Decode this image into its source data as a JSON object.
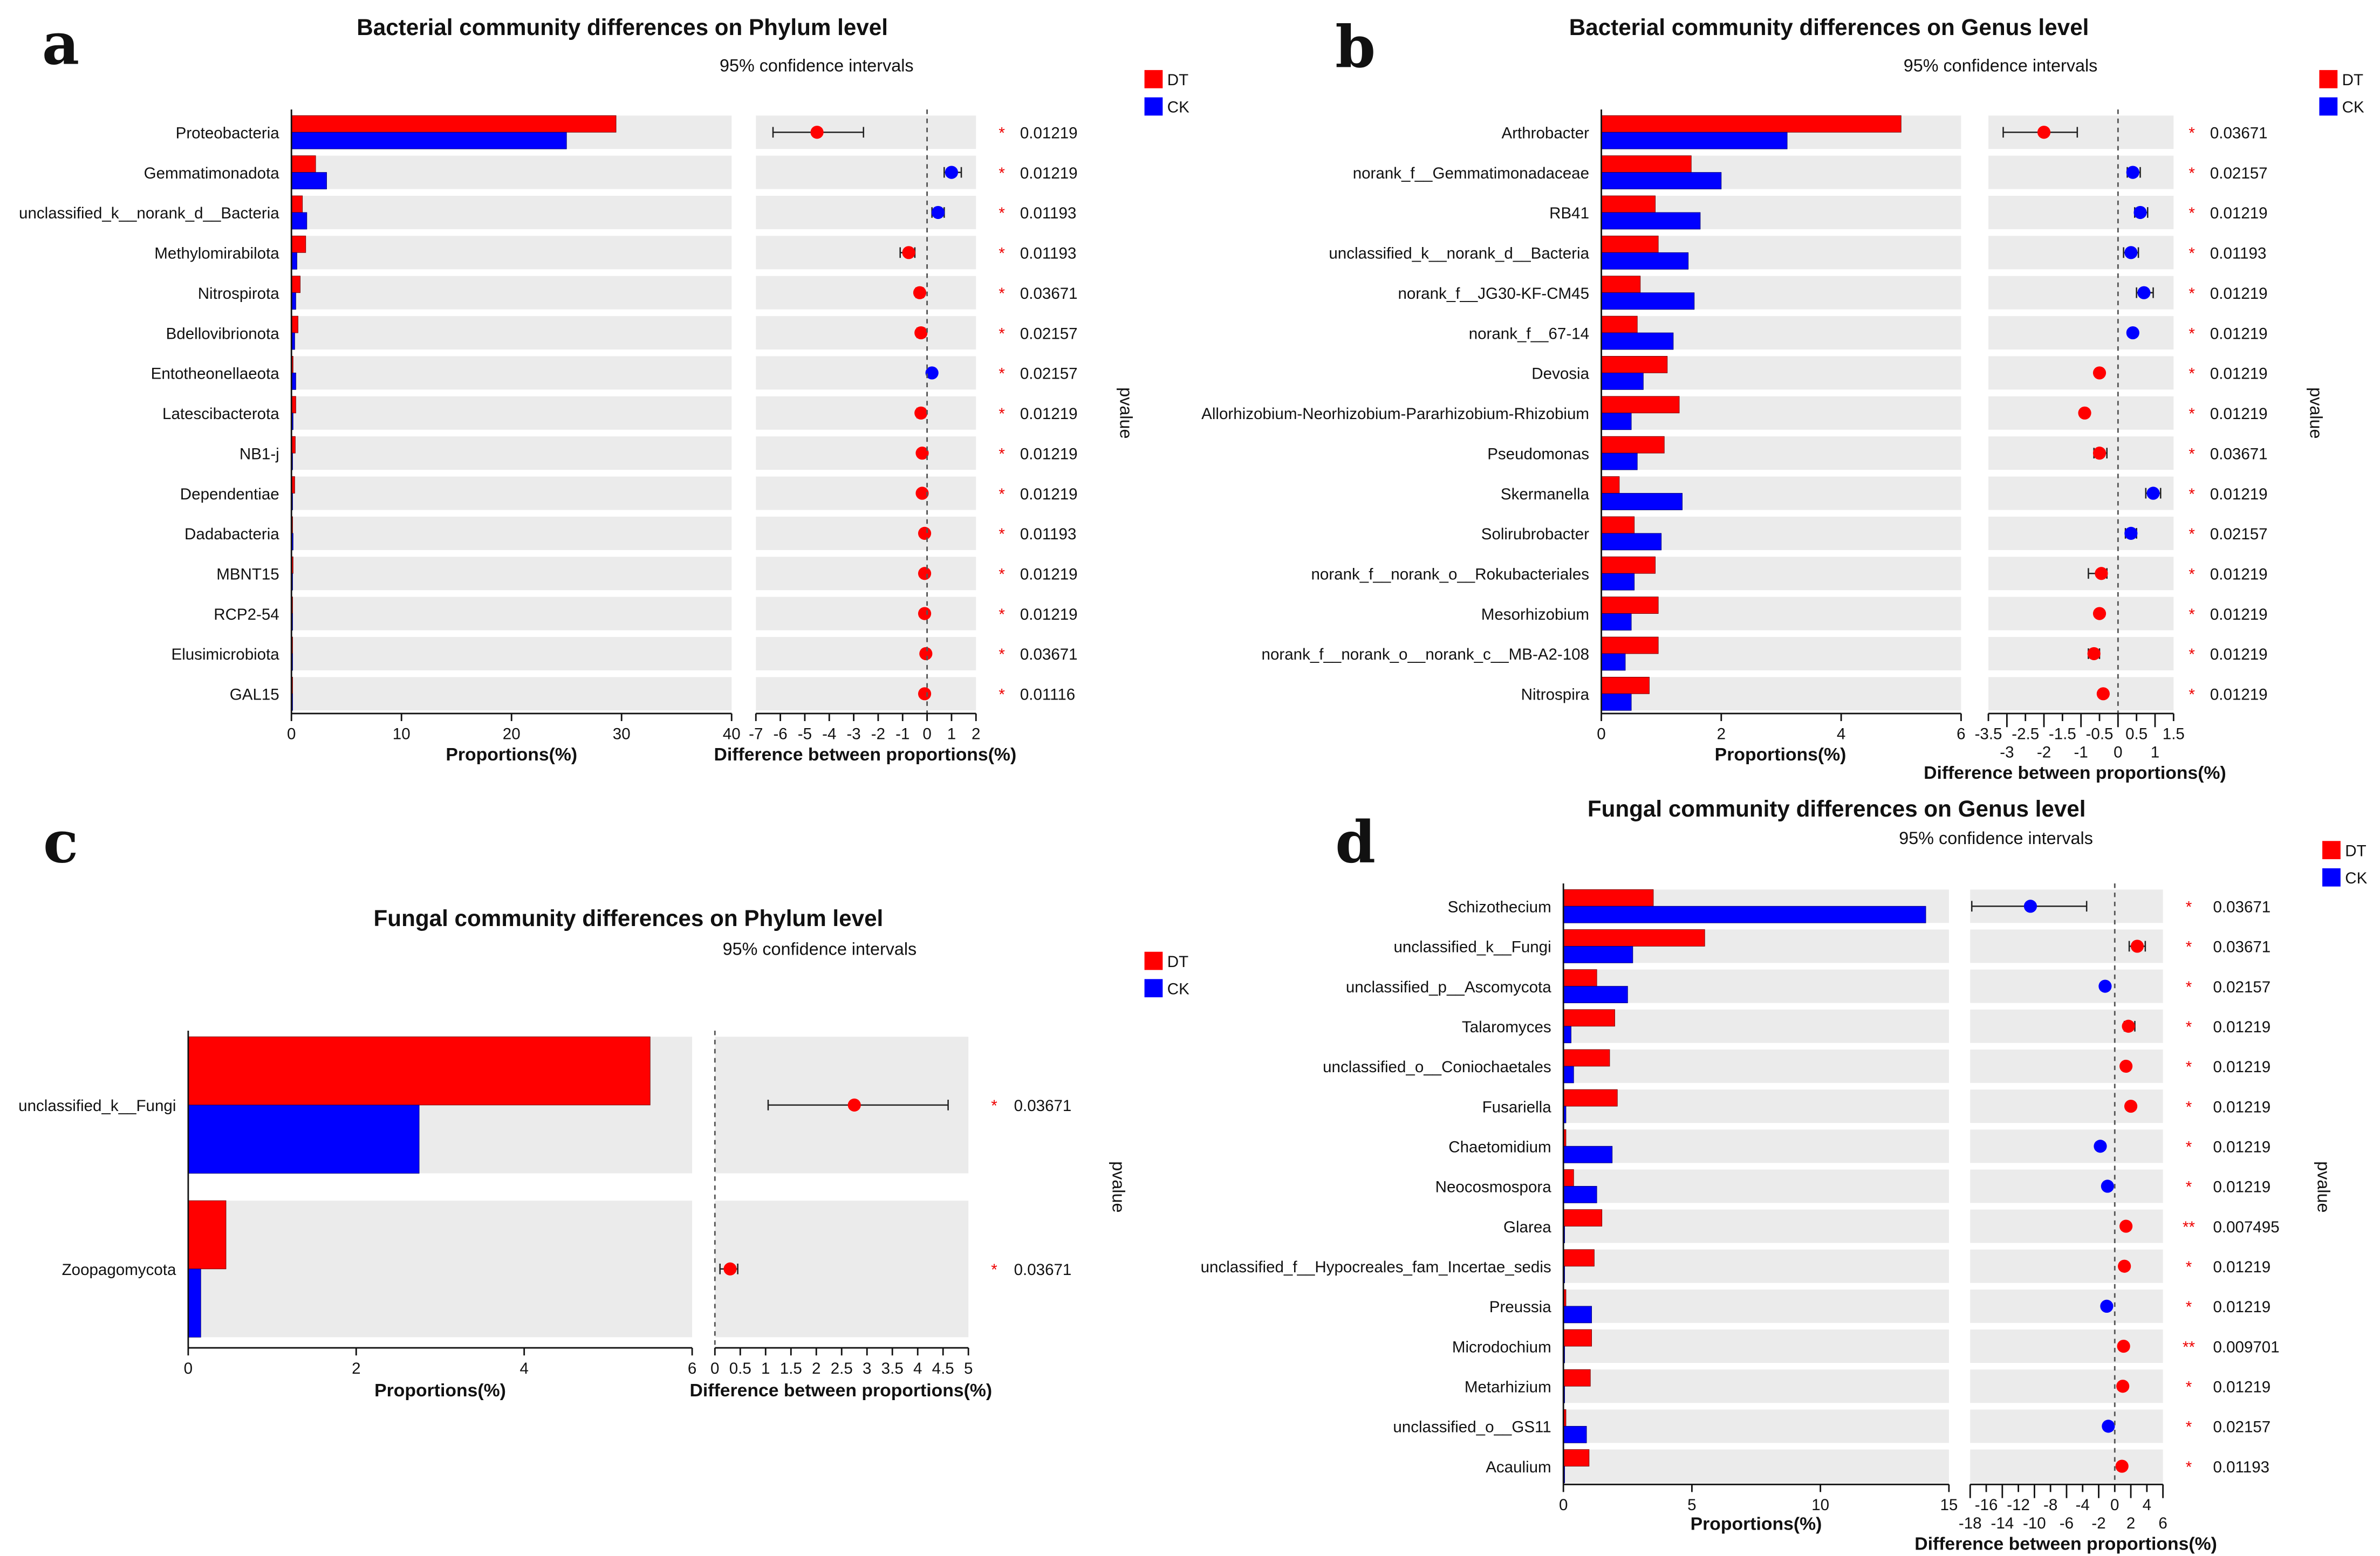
{
  "legend": {
    "dt": "DT",
    "ck": "CK"
  },
  "colors": {
    "DT": "#ff0000",
    "CK": "#0000ff",
    "band": "#ebebeb"
  },
  "chart_data": [
    {
      "id": "a",
      "type": "bar",
      "title": "Bacterial community differences on Phylum level",
      "subtitle": "95% confidence intervals",
      "xlabel": "Proportions(%)",
      "diff_xlabel": "Difference between proportions(%)",
      "pvalue_label": "pvalue",
      "xlim": [
        0,
        40
      ],
      "xticks": [
        0,
        10,
        20,
        30,
        40
      ],
      "diff_xlim": [
        -7,
        2
      ],
      "diff_xticks": [
        -7,
        -6,
        -5,
        -4,
        -3,
        -2,
        -1,
        0,
        1,
        2
      ],
      "categories": [
        "Proteobacteria",
        "Gemmatimonadota",
        "unclassified_k__norank_d__Bacteria",
        "Methylomirabilota",
        "Nitrospirota",
        "Bdellovibrionota",
        "Entotheonellaeota",
        "Latescibacterota",
        "NB1-j",
        "Dependentiae",
        "Dadabacteria",
        "MBNT15",
        "RCP2-54",
        "Elusimicrobiota",
        "GAL15"
      ],
      "series": [
        {
          "name": "DT",
          "values": [
            29.5,
            2.2,
            1.0,
            1.3,
            0.8,
            0.6,
            0.15,
            0.4,
            0.35,
            0.3,
            0.1,
            0.15,
            0.1,
            0.1,
            0.1
          ]
        },
        {
          "name": "CK",
          "values": [
            25.0,
            3.2,
            1.4,
            0.5,
            0.4,
            0.3,
            0.4,
            0.15,
            0.1,
            0.1,
            0.15,
            0.05,
            0.05,
            0.05,
            0.05
          ]
        }
      ],
      "difference": [
        -4.5,
        1.0,
        0.45,
        -0.75,
        -0.3,
        -0.25,
        0.2,
        -0.25,
        -0.2,
        -0.2,
        -0.1,
        -0.1,
        -0.1,
        -0.05,
        -0.1
      ],
      "ci_low": [
        -6.3,
        0.7,
        0.2,
        -1.1,
        -0.45,
        -0.4,
        0.1,
        -0.4,
        -0.3,
        -0.3,
        -0.2,
        -0.2,
        -0.2,
        -0.15,
        -0.2
      ],
      "ci_high": [
        -2.6,
        1.4,
        0.7,
        -0.5,
        -0.15,
        -0.1,
        0.3,
        -0.1,
        -0.1,
        -0.1,
        0.0,
        0.0,
        0.0,
        0.05,
        0.0
      ],
      "point_group": [
        "DT",
        "CK",
        "CK",
        "DT",
        "DT",
        "DT",
        "CK",
        "DT",
        "DT",
        "DT",
        "DT",
        "DT",
        "DT",
        "DT",
        "DT"
      ],
      "stars": [
        "*",
        "*",
        "*",
        "*",
        "*",
        "*",
        "*",
        "*",
        "*",
        "*",
        "*",
        "*",
        "*",
        "*",
        "*"
      ],
      "pvalues": [
        "0.01219",
        "0.01219",
        "0.01193",
        "0.01193",
        "0.03671",
        "0.02157",
        "0.02157",
        "0.01219",
        "0.01219",
        "0.01219",
        "0.01193",
        "0.01219",
        "0.01219",
        "0.03671",
        "0.01116"
      ]
    },
    {
      "id": "b",
      "type": "bar",
      "title": "Bacterial community differences on Genus level",
      "subtitle": "95% confidence intervals",
      "xlabel": "Proportions(%)",
      "diff_xlabel": "Difference between proportions(%)",
      "pvalue_label": "pvalue",
      "xlim": [
        0,
        6
      ],
      "xticks": [
        0,
        2,
        4,
        6
      ],
      "diff_xlim": [
        -3.5,
        1.5
      ],
      "diff_xticks": [
        -3.5,
        -3,
        -2.5,
        -2,
        -1.5,
        -1,
        -0.5,
        0,
        0.5,
        1,
        1.5
      ],
      "categories": [
        "Arthrobacter",
        "norank_f__Gemmatimonadaceae",
        "RB41",
        "unclassified_k__norank_d__Bacteria",
        "norank_f__JG30-KF-CM45",
        "norank_f__67-14",
        "Devosia",
        "Allorhizobium-Neorhizobium-Pararhizobium-Rhizobium",
        "Pseudomonas",
        "Skermanella",
        "Solirubrobacter",
        "norank_f__norank_o__Rokubacteriales",
        "Mesorhizobium",
        "norank_f__norank_o__norank_c__MB-A2-108",
        "Nitrospira"
      ],
      "series": [
        {
          "name": "DT",
          "values": [
            5.0,
            1.5,
            0.9,
            0.95,
            0.65,
            0.6,
            1.1,
            1.3,
            1.05,
            0.3,
            0.55,
            0.9,
            0.95,
            0.95,
            0.8
          ]
        },
        {
          "name": "CK",
          "values": [
            3.1,
            2.0,
            1.65,
            1.45,
            1.55,
            1.2,
            0.7,
            0.5,
            0.6,
            1.35,
            1.0,
            0.55,
            0.5,
            0.4,
            0.5
          ]
        }
      ],
      "difference": [
        -2.0,
        0.4,
        0.6,
        0.35,
        0.7,
        0.4,
        -0.5,
        -0.9,
        -0.5,
        0.95,
        0.35,
        -0.45,
        -0.5,
        -0.65,
        -0.4
      ],
      "ci_low": [
        -3.1,
        0.25,
        0.45,
        0.15,
        0.5,
        0.35,
        -0.55,
        -0.95,
        -0.65,
        0.75,
        0.2,
        -0.8,
        -0.55,
        -0.8,
        -0.45
      ],
      "ci_high": [
        -1.1,
        0.6,
        0.8,
        0.55,
        0.95,
        0.45,
        -0.45,
        -0.85,
        -0.3,
        1.15,
        0.5,
        -0.3,
        -0.45,
        -0.5,
        -0.35
      ],
      "point_group": [
        "DT",
        "CK",
        "CK",
        "CK",
        "CK",
        "CK",
        "DT",
        "DT",
        "DT",
        "CK",
        "CK",
        "DT",
        "DT",
        "DT",
        "DT"
      ],
      "stars": [
        "*",
        "*",
        "*",
        "*",
        "*",
        "*",
        "*",
        "*",
        "*",
        "*",
        "*",
        "*",
        "*",
        "*",
        "*"
      ],
      "pvalues": [
        "0.03671",
        "0.02157",
        "0.01219",
        "0.01193",
        "0.01219",
        "0.01219",
        "0.01219",
        "0.01219",
        "0.03671",
        "0.01219",
        "0.02157",
        "0.01219",
        "0.01219",
        "0.01219",
        "0.01219"
      ]
    },
    {
      "id": "c",
      "type": "bar",
      "title": "Fungal community differences on Phylum level",
      "subtitle": "95% confidence intervals",
      "xlabel": "Proportions(%)",
      "diff_xlabel": "Difference between proportions(%)",
      "pvalue_label": "pvalue",
      "xlim": [
        0,
        6
      ],
      "xticks": [
        0,
        2,
        4,
        6
      ],
      "diff_xlim": [
        0,
        5
      ],
      "diff_xticks": [
        0,
        0.5,
        1,
        1.5,
        2,
        2.5,
        3,
        3.5,
        4,
        4.5,
        5
      ],
      "categories": [
        "unclassified_k__Fungi",
        "Zoopagomycota"
      ],
      "series": [
        {
          "name": "DT",
          "values": [
            5.5,
            0.45
          ]
        },
        {
          "name": "CK",
          "values": [
            2.75,
            0.15
          ]
        }
      ],
      "difference": [
        2.75,
        0.3
      ],
      "ci_low": [
        1.05,
        0.1
      ],
      "ci_high": [
        4.6,
        0.45
      ],
      "point_group": [
        "DT",
        "DT"
      ],
      "stars": [
        "*",
        "*"
      ],
      "pvalues": [
        "0.03671",
        "0.03671"
      ]
    },
    {
      "id": "d",
      "type": "bar",
      "title": "Fungal community differences on Genus level",
      "subtitle": "95% confidence intervals",
      "xlabel": "Proportions(%)",
      "diff_xlabel": "Difference between proportions(%)",
      "pvalue_label": "pvalue",
      "xlim": [
        0,
        15
      ],
      "xticks": [
        0,
        5,
        10,
        15
      ],
      "diff_xlim": [
        -18,
        6
      ],
      "diff_xticks": [
        -18,
        -16,
        -14,
        -12,
        -10,
        -8,
        -6,
        -4,
        -2,
        0,
        2,
        4,
        6
      ],
      "categories": [
        "Schizothecium",
        "unclassified_k__Fungi",
        "unclassified_p__Ascomycota",
        "Talaromyces",
        "unclassified_o__Coniochaetales",
        "Fusariella",
        "Chaetomidium",
        "Neocosmospora",
        "Glarea",
        "unclassified_f__Hypocreales_fam_Incertae_sedis",
        "Preussia",
        "Microdochium",
        "Metarhizium",
        "unclassified_o__GS11",
        "Acaulium"
      ],
      "series": [
        {
          "name": "DT",
          "values": [
            3.5,
            5.5,
            1.3,
            2.0,
            1.8,
            2.1,
            0.1,
            0.4,
            1.5,
            1.2,
            0.1,
            1.1,
            1.05,
            0.1,
            1.0
          ]
        },
        {
          "name": "CK",
          "values": [
            14.1,
            2.7,
            2.5,
            0.3,
            0.4,
            0.1,
            1.9,
            1.3,
            0.05,
            0.05,
            1.1,
            0.05,
            0.05,
            0.9,
            0.05
          ]
        }
      ],
      "difference": [
        -10.5,
        2.8,
        -1.2,
        1.7,
        1.4,
        2.0,
        -1.8,
        -0.9,
        1.4,
        1.2,
        -1.0,
        1.1,
        1.0,
        -0.8,
        0.9
      ],
      "ci_low": [
        -17.8,
        1.8,
        -1.4,
        1.2,
        1.2,
        1.8,
        -2.0,
        -1.1,
        1.2,
        1.0,
        -1.2,
        0.9,
        0.8,
        -1.0,
        0.7
      ],
      "ci_high": [
        -3.5,
        3.8,
        -1.0,
        2.5,
        1.6,
        2.2,
        -1.6,
        -0.7,
        1.6,
        1.4,
        -0.8,
        1.3,
        1.2,
        -0.6,
        1.1
      ],
      "point_group": [
        "CK",
        "DT",
        "CK",
        "DT",
        "DT",
        "DT",
        "CK",
        "CK",
        "DT",
        "DT",
        "CK",
        "DT",
        "DT",
        "CK",
        "DT"
      ],
      "stars": [
        "*",
        "*",
        "*",
        "*",
        "*",
        "*",
        "*",
        "*",
        "**",
        "*",
        "*",
        "**",
        "*",
        "*",
        "*"
      ],
      "pvalues": [
        "0.03671",
        "0.03671",
        "0.02157",
        "0.01219",
        "0.01219",
        "0.01219",
        "0.01219",
        "0.01219",
        "0.007495",
        "0.01219",
        "0.01219",
        "0.009701",
        "0.01219",
        "0.02157",
        "0.01193"
      ]
    }
  ]
}
